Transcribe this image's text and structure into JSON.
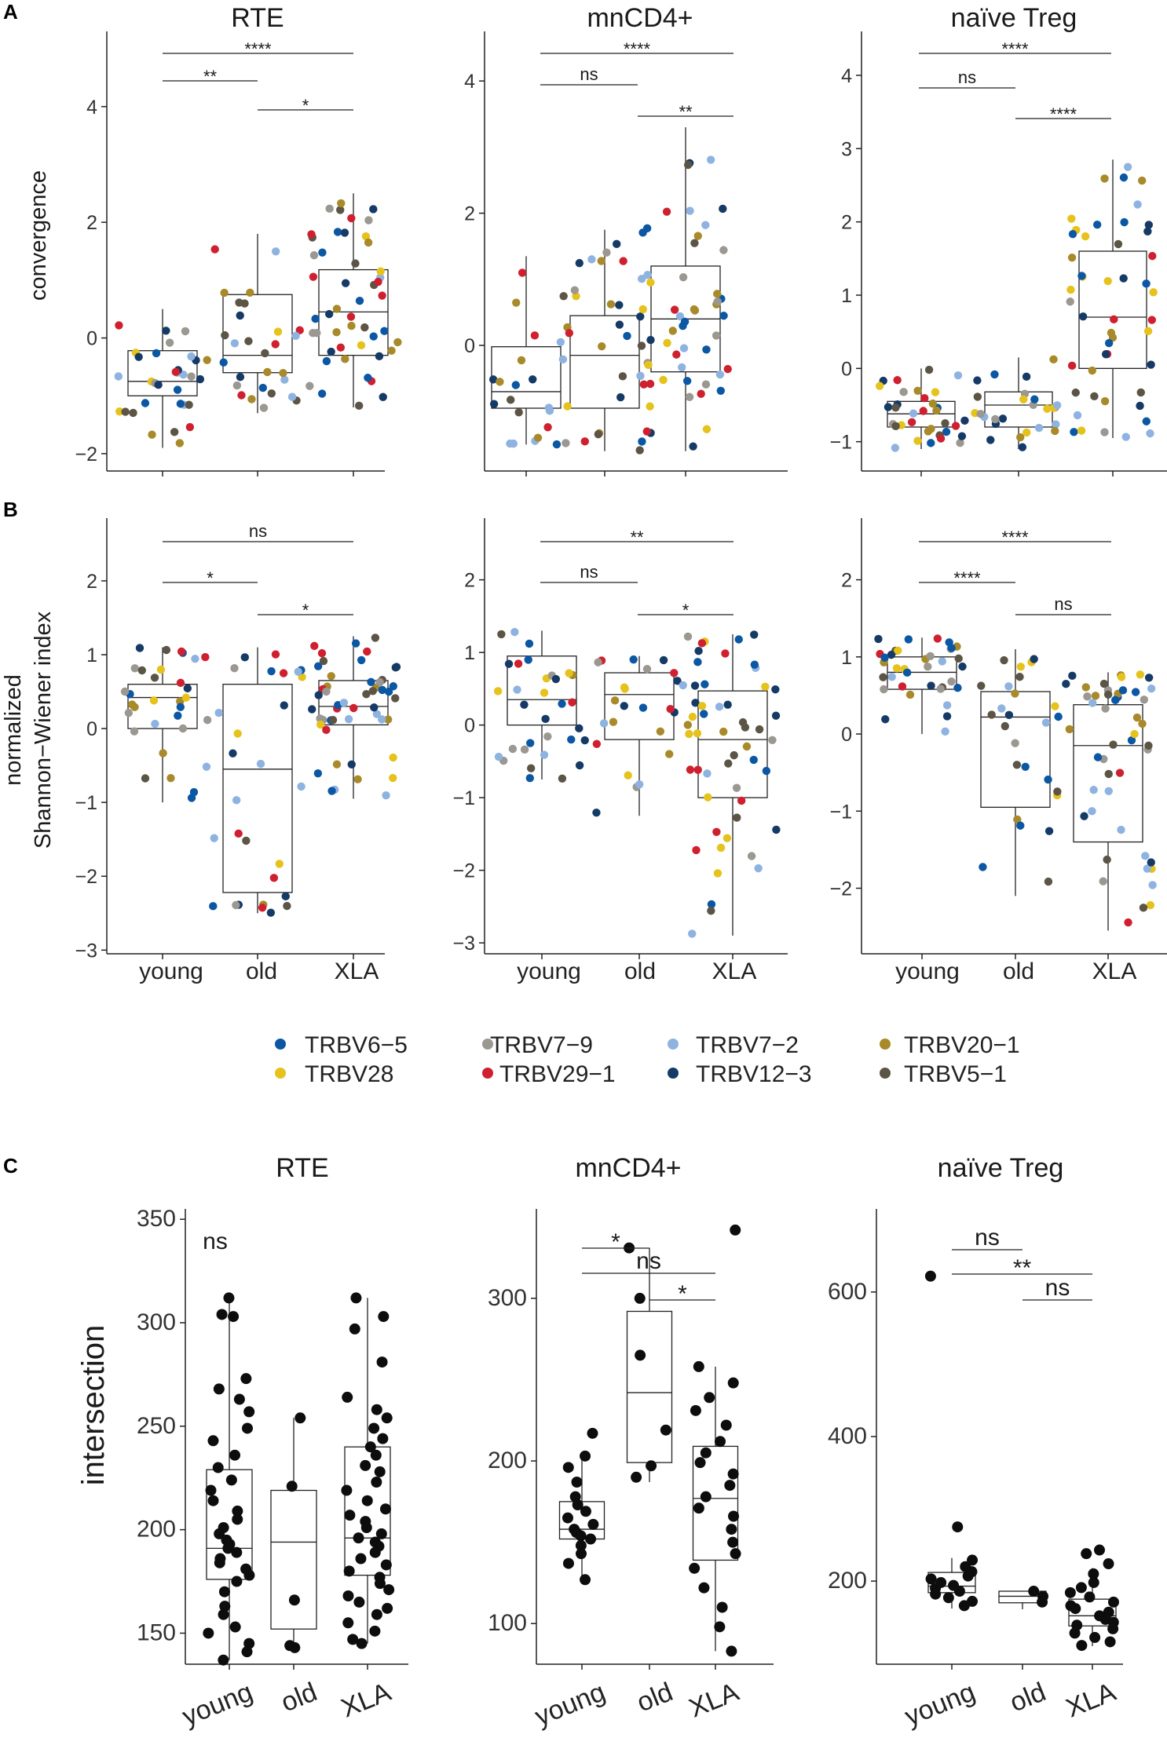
{
  "panels": {
    "A": "A",
    "B": "B",
    "C": "C"
  },
  "groups": [
    "young",
    "old",
    "XLA"
  ],
  "titles": {
    "rte": "RTE",
    "mncd4": "mnCD4+",
    "treg": "naïve Treg"
  },
  "y_labels": {
    "convergence": "convergence",
    "shannon_line1": "normalized",
    "shannon_line2": "Shannon−Wiener index",
    "intersection": "intersection"
  },
  "legend": [
    {
      "label": "TRBV6−5",
      "color": "#0b57a4"
    },
    {
      "label": "TRBV7−9",
      "color": "#9b9791"
    },
    {
      "label": "TRBV7−2",
      "color": "#8fb3e0"
    },
    {
      "label": "TRBV20−1",
      "color": "#a88a2a"
    },
    {
      "label": "TRBV28",
      "color": "#e6c21c"
    },
    {
      "label": "TRBV29−1",
      "color": "#cf2030"
    },
    {
      "label": "TRBV12−3",
      "color": "#163a66"
    },
    {
      "label": "TRBV5−1",
      "color": "#5c5546"
    }
  ],
  "chart_data": [
    {
      "id": "A1",
      "type": "box+jitter",
      "title": "RTE",
      "ylabel": "convergence",
      "ylim": [
        -2.3,
        5.3
      ],
      "yticks": [
        -2,
        0,
        2,
        4
      ],
      "categories": [
        "young",
        "old",
        "XLA"
      ],
      "boxes": [
        {
          "min": -1.9,
          "q1": -1.0,
          "median": -0.75,
          "q3": -0.22,
          "max": 0.5
        },
        {
          "min": -1.3,
          "q1": -0.6,
          "median": -0.3,
          "q3": 0.75,
          "max": 1.8
        },
        {
          "min": -1.2,
          "q1": -0.3,
          "median": 0.45,
          "q3": 1.18,
          "max": 2.5
        }
      ],
      "n_points": [
        32,
        28,
        48
      ],
      "sig": [
        {
          "from": "young",
          "to": "old",
          "label": "**"
        },
        {
          "from": "old",
          "to": "XLA",
          "label": "*"
        },
        {
          "from": "young",
          "to": "XLA",
          "label": "****"
        }
      ]
    },
    {
      "id": "A2",
      "type": "box+jitter",
      "title": "mnCD4+",
      "ylabel": "convergence",
      "ylim": [
        -1.9,
        4.75
      ],
      "yticks": [
        0,
        2,
        4
      ],
      "categories": [
        "young",
        "old",
        "XLA"
      ],
      "boxes": [
        {
          "min": -1.5,
          "q1": -0.95,
          "median": -0.7,
          "q3": -0.02,
          "max": 1.35
        },
        {
          "min": -1.6,
          "q1": -0.95,
          "median": -0.15,
          "q3": 0.45,
          "max": 1.75
        },
        {
          "min": -1.6,
          "q1": -0.4,
          "median": 0.4,
          "q3": 1.2,
          "max": 3.3
        }
      ],
      "n_points": [
        24,
        26,
        52
      ],
      "sig": [
        {
          "from": "young",
          "to": "old",
          "label": "ns"
        },
        {
          "from": "old",
          "to": "XLA",
          "label": "**"
        },
        {
          "from": "young",
          "to": "XLA",
          "label": "****"
        }
      ]
    },
    {
      "id": "A3",
      "type": "box+jitter",
      "title": "naïve Treg",
      "ylabel": "convergence",
      "ylim": [
        -1.4,
        4.6
      ],
      "yticks": [
        -1,
        0,
        1,
        2,
        3,
        4
      ],
      "categories": [
        "young",
        "old",
        "XLA"
      ],
      "boxes": [
        {
          "min": -1.1,
          "q1": -0.8,
          "median": -0.62,
          "q3": -0.45,
          "max": 0.0
        },
        {
          "min": -1.1,
          "q1": -0.8,
          "median": -0.5,
          "q3": -0.32,
          "max": 0.15
        },
        {
          "min": -0.95,
          "q1": 0.0,
          "median": 0.7,
          "q3": 1.6,
          "max": 2.85
        }
      ],
      "n_points": [
        34,
        26,
        48
      ],
      "sig": [
        {
          "from": "young",
          "to": "old",
          "label": "ns"
        },
        {
          "from": "old",
          "to": "XLA",
          "label": "****"
        },
        {
          "from": "young",
          "to": "XLA",
          "label": "****"
        }
      ]
    },
    {
      "id": "B1",
      "type": "box+jitter",
      "title": "",
      "ylabel": "normalized Shannon−Wiener index",
      "ylim": [
        -3.05,
        2.85
      ],
      "yticks": [
        -3,
        -2,
        -1,
        0,
        1,
        2
      ],
      "categories": [
        "young",
        "old",
        "XLA"
      ],
      "boxes": [
        {
          "min": -1.0,
          "q1": 0.0,
          "median": 0.42,
          "q3": 0.6,
          "max": 1.1
        },
        {
          "min": -2.5,
          "q1": -2.22,
          "median": -0.55,
          "q3": 0.6,
          "max": 1.1
        },
        {
          "min": -0.95,
          "q1": 0.05,
          "median": 0.3,
          "q3": 0.65,
          "max": 1.25
        }
      ],
      "n_points": [
        32,
        28,
        50
      ],
      "sig": [
        {
          "from": "young",
          "to": "old",
          "label": "*"
        },
        {
          "from": "old",
          "to": "XLA",
          "label": "*"
        },
        {
          "from": "young",
          "to": "XLA",
          "label": "ns"
        }
      ]
    },
    {
      "id": "B2",
      "type": "box+jitter",
      "title": "",
      "ylabel": "normalized Shannon−Wiener index",
      "ylim": [
        -3.15,
        2.85
      ],
      "yticks": [
        -3,
        -2,
        -1,
        0,
        1,
        2
      ],
      "categories": [
        "young",
        "old",
        "XLA"
      ],
      "boxes": [
        {
          "min": -0.75,
          "q1": 0.0,
          "median": 0.35,
          "q3": 0.95,
          "max": 1.3
        },
        {
          "min": -1.25,
          "q1": -0.2,
          "median": 0.42,
          "q3": 0.72,
          "max": 0.95
        },
        {
          "min": -2.9,
          "q1": -1.0,
          "median": -0.2,
          "q3": 0.47,
          "max": 1.25
        }
      ],
      "n_points": [
        32,
        24,
        52
      ],
      "sig": [
        {
          "from": "young",
          "to": "old",
          "label": "ns"
        },
        {
          "from": "old",
          "to": "XLA",
          "label": "*"
        },
        {
          "from": "young",
          "to": "XLA",
          "label": "**"
        }
      ]
    },
    {
      "id": "B3",
      "type": "box+jitter",
      "title": "",
      "ylabel": "normalized Shannon−Wiener index",
      "ylim": [
        -2.85,
        2.8
      ],
      "yticks": [
        -2,
        -1,
        0,
        1,
        2
      ],
      "categories": [
        "young",
        "old",
        "XLA"
      ],
      "boxes": [
        {
          "min": -0.0,
          "q1": 0.58,
          "median": 0.8,
          "q3": 1.0,
          "max": 1.25
        },
        {
          "min": -2.1,
          "q1": -0.95,
          "median": 0.22,
          "q3": 0.55,
          "max": 1.1
        },
        {
          "min": -2.55,
          "q1": -1.4,
          "median": -0.15,
          "q3": 0.38,
          "max": 0.8
        }
      ],
      "n_points": [
        36,
        26,
        48
      ],
      "sig": [
        {
          "from": "young",
          "to": "old",
          "label": "****"
        },
        {
          "from": "old",
          "to": "XLA",
          "label": "ns"
        },
        {
          "from": "young",
          "to": "XLA",
          "label": "****"
        }
      ]
    },
    {
      "id": "C1",
      "type": "box+jitter",
      "title": "RTE",
      "ylabel": "intersection",
      "ylim": [
        135,
        355
      ],
      "yticks": [
        150,
        200,
        250,
        300,
        350
      ],
      "categories": [
        "young",
        "old",
        "XLA"
      ],
      "boxes": [
        {
          "min": 137,
          "q1": 176,
          "median": 191,
          "q3": 229,
          "max": 312
        },
        {
          "min": 143,
          "q1": 152,
          "median": 194,
          "q3": 219,
          "max": 254
        },
        {
          "min": 145,
          "q1": 178,
          "median": 196,
          "q3": 240,
          "max": 312
        }
      ],
      "points": [
        [
          312,
          304,
          303,
          273,
          268,
          263,
          257,
          249,
          243,
          236,
          230,
          224,
          219,
          214,
          209,
          205,
          201,
          198,
          195,
          193,
          191,
          189,
          186,
          184,
          181,
          178,
          175,
          170,
          163,
          159,
          153,
          150,
          145,
          141,
          137
        ],
        [
          254,
          221,
          166,
          144,
          143
        ],
        [
          312,
          303,
          297,
          281,
          264,
          258,
          254,
          249,
          244,
          240,
          236,
          231,
          228,
          223,
          219,
          214,
          210,
          207,
          204,
          201,
          198,
          196,
          194,
          192,
          189,
          186,
          183,
          180,
          177,
          174,
          171,
          168,
          165,
          162,
          159,
          155,
          151,
          147,
          145
        ]
      ],
      "sig": [
        {
          "from": "young",
          "to": "young",
          "label": "ns"
        }
      ]
    },
    {
      "id": "C2",
      "type": "box+jitter",
      "title": "mnCD4+",
      "ylabel": "intersection",
      "ylim": [
        75,
        355
      ],
      "yticks": [
        100,
        200,
        300
      ],
      "categories": [
        "young",
        "old",
        "XLA"
      ],
      "boxes": [
        {
          "min": 127,
          "q1": 152,
          "median": 158,
          "q3": 175,
          "max": 203
        },
        {
          "min": 187,
          "q1": 199,
          "median": 242,
          "q3": 292,
          "max": 331
        },
        {
          "min": 83,
          "q1": 139,
          "median": 177,
          "q3": 209,
          "max": 258
        }
      ],
      "points": [
        [
          217,
          203,
          196,
          187,
          178,
          173,
          169,
          165,
          161,
          158,
          156,
          154,
          152,
          148,
          143,
          137,
          127
        ],
        [
          331,
          300,
          265,
          219,
          197,
          190
        ],
        [
          342,
          258,
          248,
          239,
          231,
          222,
          212,
          205,
          199,
          192,
          185,
          178,
          171,
          166,
          158,
          150,
          143,
          134,
          122,
          110,
          98,
          83
        ]
      ],
      "sig": [
        {
          "from": "young",
          "to": "old",
          "label": "*"
        },
        {
          "from": "young",
          "to": "XLA",
          "label": "ns"
        },
        {
          "from": "old",
          "to": "XLA",
          "label": "*"
        }
      ]
    },
    {
      "id": "C3",
      "type": "box+jitter",
      "title": "naïve Treg",
      "ylabel": "intersection",
      "ylim": [
        85,
        715
      ],
      "yticks": [
        200,
        400,
        600
      ],
      "categories": [
        "young",
        "old",
        "XLA"
      ],
      "boxes": [
        {
          "min": 162,
          "q1": 184,
          "median": 193,
          "q3": 212,
          "max": 232
        },
        {
          "min": 161,
          "q1": 170,
          "median": 179,
          "q3": 186,
          "max": 186
        },
        {
          "min": 110,
          "q1": 138,
          "median": 152,
          "q3": 175,
          "max": 218
        }
      ],
      "points": [
        [
          622,
          275,
          229,
          220,
          213,
          207,
          203,
          198,
          194,
          190,
          186,
          182,
          177,
          172,
          166
        ],
        [
          186,
          179,
          171
        ],
        [
          243,
          238,
          224,
          210,
          198,
          191,
          184,
          178,
          171,
          166,
          162,
          157,
          152,
          147,
          143,
          139,
          134,
          128,
          122,
          116,
          111
        ]
      ],
      "sig": [
        {
          "from": "young",
          "to": "old",
          "label": "ns"
        },
        {
          "from": "young",
          "to": "XLA",
          "label": "**"
        },
        {
          "from": "old",
          "to": "XLA",
          "label": "ns"
        }
      ]
    }
  ]
}
